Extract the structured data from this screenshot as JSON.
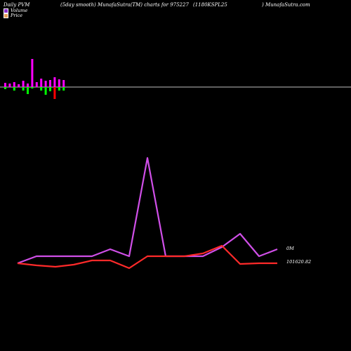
{
  "header": {
    "left": "Daily PVM",
    "smooth": "(5day smooth) MunafaSutra(TM) charts for 975227",
    "ticker": "(1180KSPL25",
    "site": ") MunafaSutra.com"
  },
  "legend": [
    {
      "label": "Volume",
      "color": "#8b2fc9"
    },
    {
      "label": "Price",
      "color": "#e8a15a"
    }
  ],
  "chart_data": [
    {
      "type": "bar",
      "title": "",
      "series": [
        {
          "name": "Volume",
          "color": "#ff00ff",
          "values": [
            6,
            5,
            7,
            4,
            9,
            5,
            40,
            7,
            12,
            9,
            10,
            14,
            11,
            10
          ]
        },
        {
          "name": "Volume (down)",
          "color": "#00ff00",
          "values": [
            -3,
            0,
            -5,
            0,
            -5,
            -10,
            -2,
            0,
            -5,
            -11,
            -6,
            0,
            -5,
            -5
          ]
        },
        {
          "name": "Volume (red)",
          "color": "#ff0000",
          "values": [
            0,
            0,
            0,
            0,
            0,
            0,
            0,
            0,
            0,
            0,
            0,
            -17,
            0,
            0
          ]
        }
      ],
      "baseline": 0
    },
    {
      "type": "line",
      "title": "",
      "x": [
        0,
        1,
        2,
        3,
        4,
        5,
        6,
        7,
        8,
        9,
        10,
        11,
        12,
        13,
        14
      ],
      "series": [
        {
          "name": "Volume",
          "color": "#d04fe8",
          "values": [
            375,
            365,
            365,
            365,
            365,
            355,
            365,
            225,
            365,
            365,
            365,
            352,
            333,
            365,
            355
          ]
        },
        {
          "name": "Price",
          "color": "#ff2a2a",
          "values": [
            375,
            378,
            380,
            377,
            371,
            371,
            382,
            365,
            365,
            365,
            361,
            350,
            376,
            375,
            375
          ]
        }
      ],
      "labels": {
        "volume_last": "0M",
        "price_last": "101620.82"
      }
    }
  ]
}
